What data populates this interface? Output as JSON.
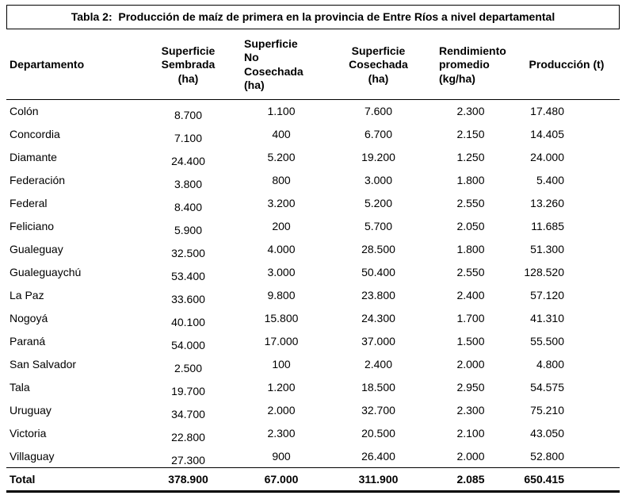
{
  "title": "Tabla 2:  Producción de maíz de primera en la provincia de Entre Ríos a nivel departamental",
  "table": {
    "columns": [
      "Departamento",
      "Superficie\nSembrada\n(ha)",
      "Superficie\nNo\nCosechada\n(ha)",
      "Superficie\nCosechada\n(ha)",
      "Rendimiento\npromedio\n(kg/ha)",
      "Producción (t)"
    ],
    "rows": [
      [
        "Colón",
        "8.700",
        "1.100",
        "7.600",
        "2.300",
        "17.480"
      ],
      [
        "Concordia",
        "7.100",
        "400",
        "6.700",
        "2.150",
        "14.405"
      ],
      [
        "Diamante",
        "24.400",
        "5.200",
        "19.200",
        "1.250",
        "24.000"
      ],
      [
        "Federación",
        "3.800",
        "800",
        "3.000",
        "1.800",
        "5.400"
      ],
      [
        "Federal",
        "8.400",
        "3.200",
        "5.200",
        "2.550",
        "13.260"
      ],
      [
        "Feliciano",
        "5.900",
        "200",
        "5.700",
        "2.050",
        "11.685"
      ],
      [
        "Gualeguay",
        "32.500",
        "4.000",
        "28.500",
        "1.800",
        "51.300"
      ],
      [
        "Gualeguaychú",
        "53.400",
        "3.000",
        "50.400",
        "2.550",
        "128.520"
      ],
      [
        "La Paz",
        "33.600",
        "9.800",
        "23.800",
        "2.400",
        "57.120"
      ],
      [
        "Nogoyá",
        "40.100",
        "15.800",
        "24.300",
        "1.700",
        "41.310"
      ],
      [
        "Paraná",
        "54.000",
        "17.000",
        "37.000",
        "1.500",
        "55.500"
      ],
      [
        "San Salvador",
        "2.500",
        "100",
        "2.400",
        "2.000",
        "4.800"
      ],
      [
        "Tala",
        "19.700",
        "1.200",
        "18.500",
        "2.950",
        "54.575"
      ],
      [
        "Uruguay",
        "34.700",
        "2.000",
        "32.700",
        "2.300",
        "75.210"
      ],
      [
        "Victoria",
        "22.800",
        "2.300",
        "20.500",
        "2.100",
        "43.050"
      ],
      [
        "Villaguay",
        "27.300",
        "900",
        "26.400",
        "2.000",
        "52.800"
      ]
    ],
    "total_row": [
      "Total",
      "378.900",
      "67.000",
      "311.900",
      "2.085",
      "650.415"
    ]
  },
  "chart_data": {
    "type": "table",
    "title": "Tabla 2: Producción de maíz de primera en la provincia de Entre Ríos a nivel departamental",
    "columns": [
      "Departamento",
      "Superficie Sembrada (ha)",
      "Superficie No Cosechada (ha)",
      "Superficie Cosechada (ha)",
      "Rendimiento promedio (kg/ha)",
      "Producción (t)"
    ],
    "rows": [
      [
        "Colón",
        8700,
        1100,
        7600,
        2300,
        17480
      ],
      [
        "Concordia",
        7100,
        400,
        6700,
        2150,
        14405
      ],
      [
        "Diamante",
        24400,
        5200,
        19200,
        1250,
        24000
      ],
      [
        "Federación",
        3800,
        800,
        3000,
        1800,
        5400
      ],
      [
        "Federal",
        8400,
        3200,
        5200,
        2550,
        13260
      ],
      [
        "Feliciano",
        5900,
        200,
        5700,
        2050,
        11685
      ],
      [
        "Gualeguay",
        32500,
        4000,
        28500,
        1800,
        51300
      ],
      [
        "Gualeguaychú",
        53400,
        3000,
        50400,
        2550,
        128520
      ],
      [
        "La Paz",
        33600,
        9800,
        23800,
        2400,
        57120
      ],
      [
        "Nogoyá",
        40100,
        15800,
        24300,
        1700,
        41310
      ],
      [
        "Paraná",
        54000,
        17000,
        37000,
        1500,
        55500
      ],
      [
        "San Salvador",
        2500,
        100,
        2400,
        2000,
        4800
      ],
      [
        "Tala",
        19700,
        1200,
        18500,
        2950,
        54575
      ],
      [
        "Uruguay",
        34700,
        2000,
        32700,
        2300,
        75210
      ],
      [
        "Victoria",
        22800,
        2300,
        20500,
        2100,
        43050
      ],
      [
        "Villaguay",
        27300,
        900,
        26400,
        2000,
        52800
      ]
    ],
    "total": [
      "Total",
      378900,
      67000,
      311900,
      2085,
      650415
    ]
  }
}
